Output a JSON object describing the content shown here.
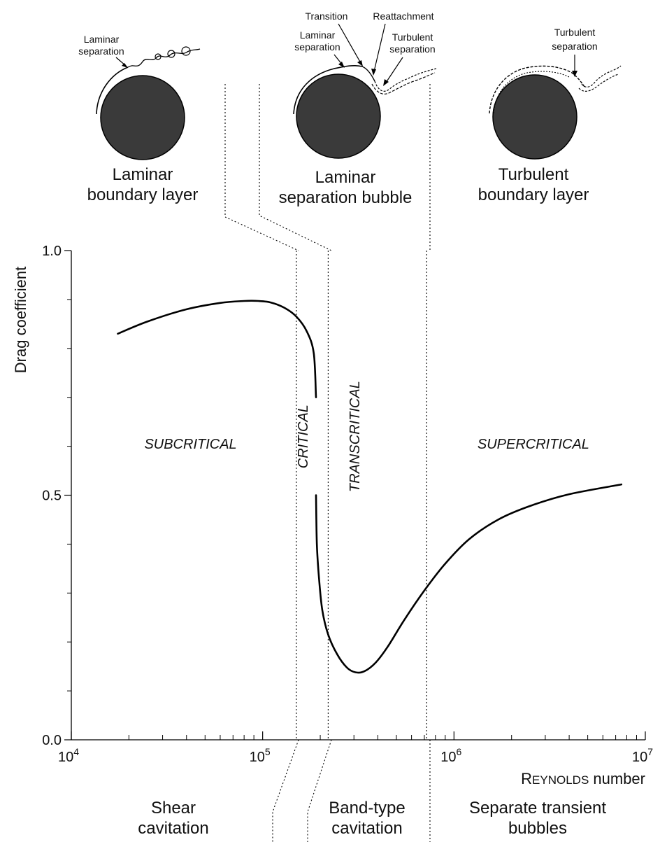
{
  "chart_data": {
    "type": "line",
    "x_scale": "log",
    "xlim": [
      10000,
      10000000
    ],
    "ylim": [
      0.0,
      1.0
    ],
    "ylabel": "Drag coefficient",
    "xlabel_sc": "Reynolds",
    "xlabel_rest": " number",
    "x_ticks": [
      {
        "value": 10000,
        "base": "10",
        "exp": "4"
      },
      {
        "value": 100000,
        "base": "10",
        "exp": "5"
      },
      {
        "value": 1000000,
        "base": "10",
        "exp": "6"
      },
      {
        "value": 10000000,
        "base": "10",
        "exp": "7"
      }
    ],
    "y_ticks": [
      {
        "value": 0.0,
        "label": "0.0"
      },
      {
        "value": 0.5,
        "label": "0.5"
      },
      {
        "value": 1.0,
        "label": "1.0"
      }
    ],
    "grid": false,
    "series": [
      {
        "upper_branch": {
          "x": [
            17500,
            25000,
            40000,
            60000,
            80000,
            95000,
            110000,
            130000,
            150000,
            170000,
            185000,
            190000
          ],
          "y": [
            0.83,
            0.855,
            0.88,
            0.893,
            0.897,
            0.897,
            0.894,
            0.883,
            0.865,
            0.835,
            0.79,
            0.7
          ]
        },
        "lower_branch": {
          "x": [
            190000,
            192000,
            197000,
            205000,
            220000,
            245000,
            275000,
            305000,
            340000,
            390000,
            450000,
            550000,
            700000,
            900000,
            1200000,
            1700000,
            2500000,
            4000000,
            7500000
          ],
          "y": [
            0.5,
            0.4,
            0.33,
            0.265,
            0.215,
            0.175,
            0.148,
            0.138,
            0.14,
            0.158,
            0.19,
            0.245,
            0.305,
            0.36,
            0.41,
            0.45,
            0.478,
            0.502,
            0.522
          ]
        }
      }
    ],
    "regime_boundaries": [
      150000,
      220000,
      720000
    ],
    "regimes": [
      {
        "label": "SUBCRITICAL",
        "x": 42000,
        "y": 0.595,
        "rotate": 0
      },
      {
        "label": "CRITICAL",
        "x": 172000,
        "y": 0.62,
        "rotate": -90
      },
      {
        "label": "TRANSCRITICAL",
        "x": 320000,
        "y": 0.62,
        "rotate": -90
      },
      {
        "label": "SUPERCRITICAL",
        "x": 2600000,
        "y": 0.595,
        "rotate": 0
      }
    ]
  },
  "top_panels": [
    {
      "line1": "Laminar",
      "line2": "boundary layer"
    },
    {
      "line1": "Laminar",
      "line2": "separation bubble"
    },
    {
      "line1": "Turbulent",
      "line2": "boundary layer"
    }
  ],
  "annotations": {
    "laminar_separation": [
      "Laminar",
      "separation"
    ],
    "transition": "Transition",
    "reattachment": "Reattachment",
    "turbulent_separation": [
      "Turbulent",
      "separation"
    ]
  },
  "cavitation": [
    {
      "line1": "Shear",
      "line2": "cavitation"
    },
    {
      "line1": "Band-type",
      "line2": "cavitation"
    },
    {
      "line1": "Separate transient",
      "line2": "bubbles"
    }
  ]
}
